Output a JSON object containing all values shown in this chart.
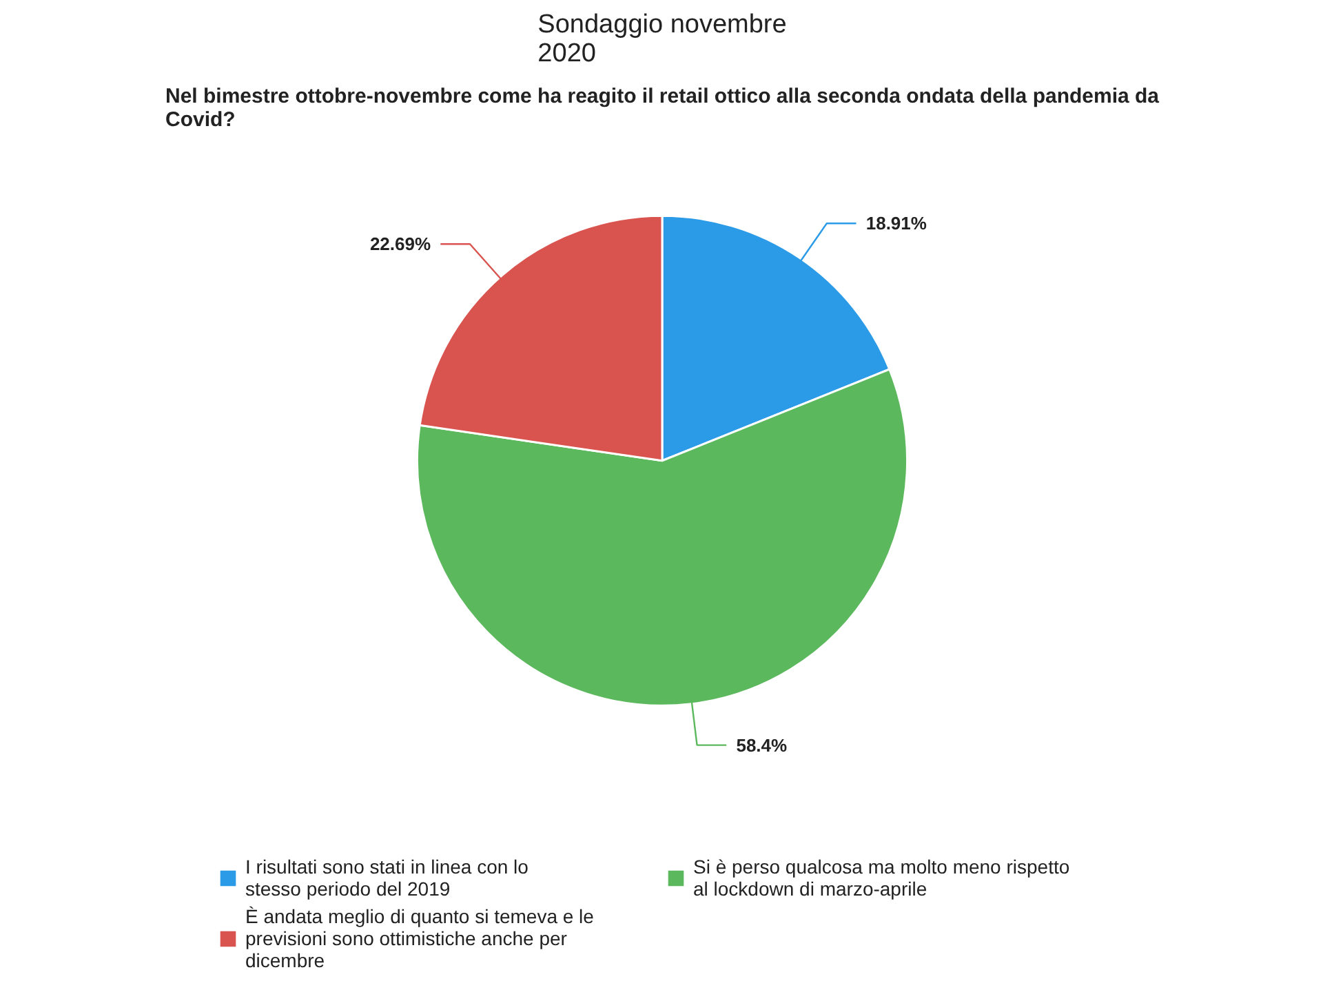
{
  "chart_data": {
    "type": "pie",
    "title": "Sondaggio novembre\n2020",
    "subtitle": "Nel bimestre ottobre-novembre come ha reagito il retail ottico alla seconda ondata della pandemia da Covid?",
    "categories": [
      "I risultati sono stati in linea con lo stesso periodo del 2019",
      "Si è perso qualcosa ma molto meno rispetto al lockdown di marzo-aprile",
      "È andata meglio di quanto si temeva e le previsioni sono ottimistiche anche per dicembre"
    ],
    "values": [
      18.91,
      58.4,
      22.69
    ],
    "colors": [
      "#2b9be8",
      "#5cb85c",
      "#d9534f"
    ],
    "value_labels": [
      "18.91%",
      "58.4%",
      "22.69%"
    ],
    "legend": "bottom"
  }
}
